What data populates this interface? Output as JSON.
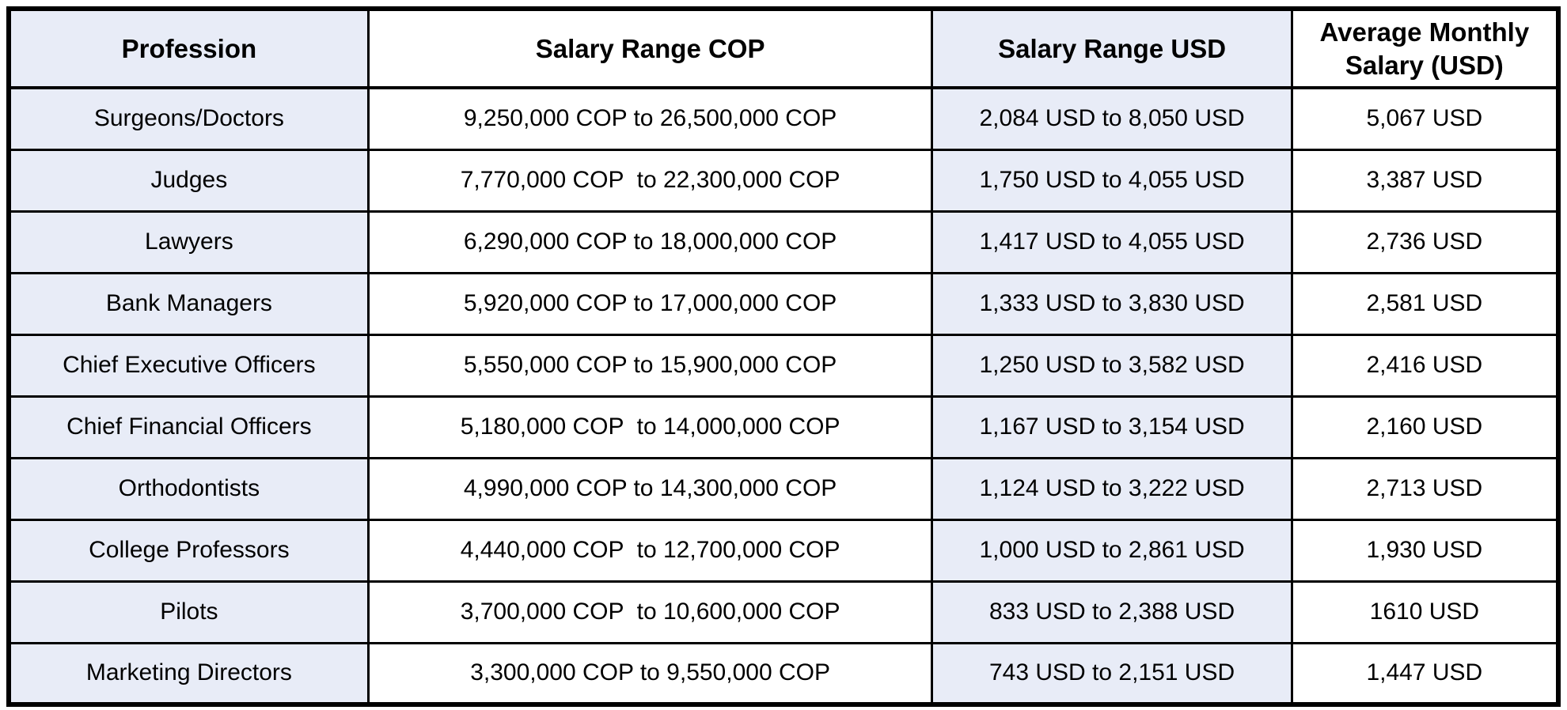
{
  "colors": {
    "stripe": "#e8ecf7",
    "border": "#000000",
    "text": "#000000",
    "page_background": "#ffffff"
  },
  "table": {
    "headers": [
      "Profession",
      "Salary Range COP",
      "Salary Range USD",
      "Average Monthly Salary (USD)"
    ],
    "rows": [
      {
        "profession": "Surgeons/Doctors",
        "salary_range_cop": "9,250,000 COP to 26,500,000 COP",
        "salary_range_usd": "2,084 USD to 8,050 USD",
        "average_monthly_salary_usd": "5,067 USD"
      },
      {
        "profession": "Judges",
        "salary_range_cop": "7,770,000 COP  to 22,300,000 COP",
        "salary_range_usd": "1,750 USD to 4,055 USD",
        "average_monthly_salary_usd": "3,387 USD"
      },
      {
        "profession": "Lawyers",
        "salary_range_cop": "6,290,000 COP to 18,000,000 COP",
        "salary_range_usd": "1,417 USD to 4,055 USD",
        "average_monthly_salary_usd": "2,736 USD"
      },
      {
        "profession": "Bank Managers",
        "salary_range_cop": "5,920,000 COP to 17,000,000 COP",
        "salary_range_usd": "1,333 USD to 3,830 USD",
        "average_monthly_salary_usd": "2,581 USD"
      },
      {
        "profession": "Chief Executive Officers",
        "salary_range_cop": "5,550,000 COP to 15,900,000 COP",
        "salary_range_usd": "1,250 USD to 3,582 USD",
        "average_monthly_salary_usd": "2,416 USD"
      },
      {
        "profession": "Chief Financial Officers",
        "salary_range_cop": "5,180,000 COP  to 14,000,000 COP",
        "salary_range_usd": "1,167 USD to 3,154 USD",
        "average_monthly_salary_usd": "2,160 USD"
      },
      {
        "profession": "Orthodontists",
        "salary_range_cop": "4,990,000 COP to 14,300,000 COP",
        "salary_range_usd": "1,124 USD to 3,222 USD",
        "average_monthly_salary_usd": "2,713 USD"
      },
      {
        "profession": "College Professors",
        "salary_range_cop": "4,440,000 COP  to 12,700,000 COP",
        "salary_range_usd": "1,000 USD to 2,861 USD",
        "average_monthly_salary_usd": "1,930 USD"
      },
      {
        "profession": "Pilots",
        "salary_range_cop": "3,700,000 COP  to 10,600,000 COP",
        "salary_range_usd": "833 USD to 2,388 USD",
        "average_monthly_salary_usd": "1610 USD"
      },
      {
        "profession": "Marketing Directors",
        "salary_range_cop": "3,300,000 COP to 9,550,000 COP",
        "salary_range_usd": "743 USD to 2,151 USD",
        "average_monthly_salary_usd": "1,447 USD"
      }
    ]
  },
  "chart_data": {
    "type": "table",
    "columns": [
      "Profession",
      "Salary Range COP",
      "Salary Range USD",
      "Average Monthly Salary (USD)"
    ],
    "rows": [
      [
        "Surgeons/Doctors",
        "9,250,000 COP to 26,500,000 COP",
        "2,084 USD to 8,050 USD",
        "5,067 USD"
      ],
      [
        "Judges",
        "7,770,000 COP  to 22,300,000 COP",
        "1,750 USD to 4,055 USD",
        "3,387 USD"
      ],
      [
        "Lawyers",
        "6,290,000 COP to 18,000,000 COP",
        "1,417 USD to 4,055 USD",
        "2,736 USD"
      ],
      [
        "Bank Managers",
        "5,920,000 COP to 17,000,000 COP",
        "1,333 USD to 3,830 USD",
        "2,581 USD"
      ],
      [
        "Chief Executive Officers",
        "5,550,000 COP to 15,900,000 COP",
        "1,250 USD to 3,582 USD",
        "2,416 USD"
      ],
      [
        "Chief Financial Officers",
        "5,180,000 COP  to 14,000,000 COP",
        "1,167 USD to 3,154 USD",
        "2,160 USD"
      ],
      [
        "Orthodontists",
        "4,990,000 COP to 14,300,000 COP",
        "1,124 USD to 3,222 USD",
        "2,713 USD"
      ],
      [
        "College Professors",
        "4,440,000 COP  to 12,700,000 COP",
        "1,000 USD to 2,861 USD",
        "1,930 USD"
      ],
      [
        "Pilots",
        "3,700,000 COP  to 10,600,000 COP",
        "833 USD to 2,388 USD",
        "1610 USD"
      ],
      [
        "Marketing Directors",
        "3,300,000 COP to 9,550,000 COP",
        "743 USD to 2,151 USD",
        "1,447 USD"
      ]
    ],
    "avg_salary_usd_values": [
      5067,
      3387,
      2736,
      2581,
      2416,
      2160,
      2713,
      1930,
      1610,
      1447
    ],
    "layout": {
      "striped_columns": [
        1,
        3
      ],
      "grid": true,
      "header_bold": true
    }
  }
}
